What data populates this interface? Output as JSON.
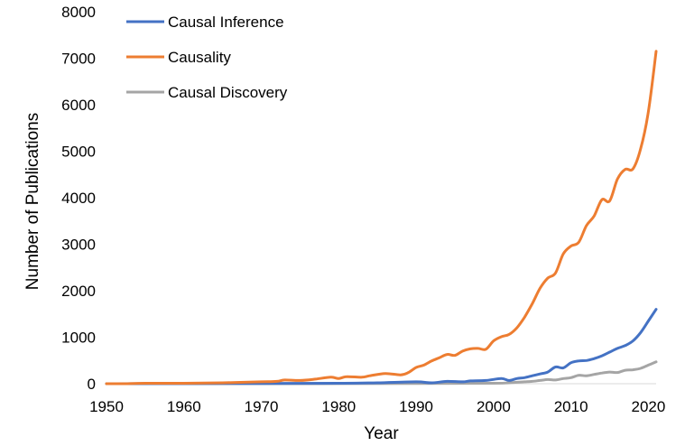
{
  "chart_data": {
    "type": "line",
    "xlabel": "Year",
    "ylabel": "Number of Publications",
    "xlim": [
      1950,
      2021
    ],
    "ylim": [
      0,
      8000
    ],
    "x_ticks": [
      1950,
      1960,
      1970,
      1980,
      1990,
      2000,
      2010,
      2020
    ],
    "y_ticks": [
      0,
      1000,
      2000,
      3000,
      4000,
      5000,
      6000,
      7000,
      8000
    ],
    "grid": false,
    "legend_position": "top-left",
    "series": [
      {
        "name": "Causal Inference",
        "color": "#4472C4",
        "points": [
          [
            1950,
            0
          ],
          [
            1960,
            2
          ],
          [
            1970,
            5
          ],
          [
            1980,
            10
          ],
          [
            1985,
            20
          ],
          [
            1990,
            40
          ],
          [
            1992,
            20
          ],
          [
            1994,
            50
          ],
          [
            1996,
            40
          ],
          [
            1997,
            60
          ],
          [
            1999,
            70
          ],
          [
            2001,
            110
          ],
          [
            2002,
            70
          ],
          [
            2003,
            110
          ],
          [
            2004,
            130
          ],
          [
            2005,
            170
          ],
          [
            2006,
            210
          ],
          [
            2007,
            250
          ],
          [
            2008,
            360
          ],
          [
            2009,
            340
          ],
          [
            2010,
            450
          ],
          [
            2011,
            490
          ],
          [
            2012,
            500
          ],
          [
            2013,
            540
          ],
          [
            2014,
            600
          ],
          [
            2015,
            680
          ],
          [
            2016,
            760
          ],
          [
            2017,
            820
          ],
          [
            2018,
            920
          ],
          [
            2019,
            1100
          ],
          [
            2020,
            1350
          ],
          [
            2021,
            1600
          ]
        ]
      },
      {
        "name": "Causality",
        "color": "#ED7D31",
        "points": [
          [
            1950,
            0
          ],
          [
            1952,
            0
          ],
          [
            1955,
            10
          ],
          [
            1960,
            10
          ],
          [
            1965,
            20
          ],
          [
            1970,
            40
          ],
          [
            1972,
            50
          ],
          [
            1973,
            80
          ],
          [
            1975,
            70
          ],
          [
            1977,
            100
          ],
          [
            1979,
            140
          ],
          [
            1980,
            110
          ],
          [
            1981,
            150
          ],
          [
            1983,
            140
          ],
          [
            1984,
            170
          ],
          [
            1986,
            220
          ],
          [
            1988,
            190
          ],
          [
            1989,
            240
          ],
          [
            1990,
            350
          ],
          [
            1991,
            400
          ],
          [
            1992,
            490
          ],
          [
            1993,
            560
          ],
          [
            1994,
            630
          ],
          [
            1995,
            610
          ],
          [
            1996,
            700
          ],
          [
            1997,
            750
          ],
          [
            1998,
            760
          ],
          [
            1999,
            740
          ],
          [
            2000,
            920
          ],
          [
            2001,
            1010
          ],
          [
            2002,
            1060
          ],
          [
            2003,
            1200
          ],
          [
            2004,
            1430
          ],
          [
            2005,
            1720
          ],
          [
            2006,
            2050
          ],
          [
            2007,
            2270
          ],
          [
            2008,
            2380
          ],
          [
            2009,
            2790
          ],
          [
            2010,
            2960
          ],
          [
            2011,
            3040
          ],
          [
            2012,
            3400
          ],
          [
            2013,
            3610
          ],
          [
            2014,
            3960
          ],
          [
            2015,
            3930
          ],
          [
            2016,
            4400
          ],
          [
            2017,
            4610
          ],
          [
            2018,
            4620
          ],
          [
            2019,
            5050
          ],
          [
            2020,
            5850
          ],
          [
            2021,
            7150
          ]
        ]
      },
      {
        "name": "Causal Discovery",
        "color": "#A5A5A5",
        "points": [
          [
            1950,
            0
          ],
          [
            1970,
            0
          ],
          [
            1990,
            5
          ],
          [
            2000,
            10
          ],
          [
            2002,
            20
          ],
          [
            2004,
            40
          ],
          [
            2005,
            50
          ],
          [
            2006,
            70
          ],
          [
            2007,
            90
          ],
          [
            2008,
            80
          ],
          [
            2009,
            110
          ],
          [
            2010,
            130
          ],
          [
            2011,
            180
          ],
          [
            2012,
            170
          ],
          [
            2013,
            200
          ],
          [
            2014,
            230
          ],
          [
            2015,
            250
          ],
          [
            2016,
            240
          ],
          [
            2017,
            290
          ],
          [
            2018,
            300
          ],
          [
            2019,
            330
          ],
          [
            2020,
            400
          ],
          [
            2021,
            470
          ]
        ]
      }
    ]
  }
}
